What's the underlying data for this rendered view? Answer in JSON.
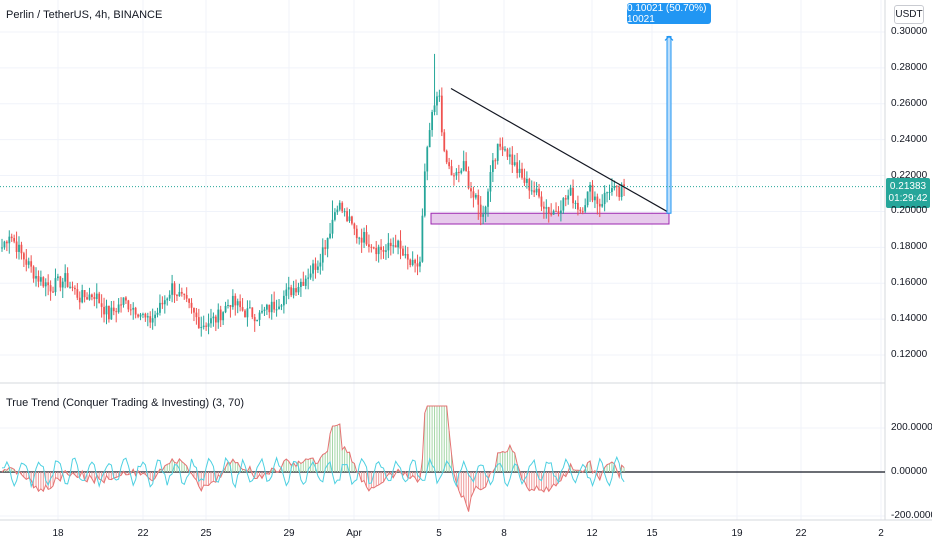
{
  "header": {
    "title": "Perlin / TetherUS, 4h, BINANCE",
    "currency_button": "USDT"
  },
  "indicator": {
    "title": "True Trend (Conquer Trading & Investing) (3, 70)",
    "y_ticks": [
      "200.00000",
      "0.00000",
      "-200.00000"
    ]
  },
  "price_axis": {
    "ticks": [
      "0.30000",
      "0.28000",
      "0.26000",
      "0.24000",
      "0.22000",
      "0.20000",
      "0.18000",
      "0.16000",
      "0.14000",
      "0.12000"
    ],
    "current_price": "0.21383",
    "countdown": "01:29:42"
  },
  "time_axis": {
    "ticks": [
      "18",
      "22",
      "25",
      "29",
      "Apr",
      "5",
      "8",
      "12",
      "15",
      "19",
      "22",
      "2"
    ]
  },
  "drawings": {
    "measure_label": "0.10021 (50.70%) 10021"
  },
  "colors": {
    "up": "#26a69a",
    "down": "#ef5350",
    "measure": "#2196f3",
    "zone_fill": "#e1bee7",
    "zone_border": "#9c27b0",
    "osc_fast": "#4dd0e1",
    "osc_slow": "#e57373",
    "hist_pos": "#a5d6a7",
    "hist_neg": "#ef9a9a"
  },
  "chart_data": {
    "type": "candlestick",
    "symbol": "PERLUSDT",
    "timeframe": "4h",
    "ylim": [
      0.11,
      0.305
    ],
    "trend_line": {
      "from": [
        0.2685,
        "Apr 5"
      ],
      "to": [
        0.2,
        "Apr 15"
      ]
    },
    "support_zone": [
      0.193,
      0.199
    ],
    "price_anchors": [
      [
        0,
        0.18
      ],
      [
        3,
        0.188
      ],
      [
        8,
        0.176
      ],
      [
        14,
        0.164
      ],
      [
        20,
        0.158
      ],
      [
        26,
        0.162
      ],
      [
        32,
        0.152
      ],
      [
        38,
        0.154
      ],
      [
        44,
        0.142
      ],
      [
        50,
        0.15
      ],
      [
        56,
        0.145
      ],
      [
        60,
        0.138
      ],
      [
        64,
        0.144
      ],
      [
        70,
        0.158
      ],
      [
        76,
        0.148
      ],
      [
        82,
        0.137
      ],
      [
        88,
        0.14
      ],
      [
        94,
        0.15
      ],
      [
        100,
        0.144
      ],
      [
        106,
        0.142
      ],
      [
        112,
        0.148
      ],
      [
        118,
        0.155
      ],
      [
        124,
        0.162
      ],
      [
        130,
        0.172
      ],
      [
        134,
        0.186
      ],
      [
        138,
        0.205
      ],
      [
        142,
        0.196
      ],
      [
        146,
        0.187
      ],
      [
        150,
        0.185
      ],
      [
        154,
        0.18
      ],
      [
        158,
        0.178
      ],
      [
        162,
        0.183
      ],
      [
        166,
        0.173
      ],
      [
        170,
        0.168
      ],
      [
        172,
        0.172
      ],
      [
        174,
        0.22
      ],
      [
        176,
        0.245
      ],
      [
        178,
        0.258
      ],
      [
        180,
        0.265
      ],
      [
        182,
        0.23
      ],
      [
        186,
        0.218
      ],
      [
        190,
        0.225
      ],
      [
        194,
        0.208
      ],
      [
        198,
        0.197
      ],
      [
        202,
        0.23
      ],
      [
        206,
        0.238
      ],
      [
        210,
        0.228
      ],
      [
        214,
        0.218
      ],
      [
        218,
        0.213
      ],
      [
        222,
        0.206
      ],
      [
        226,
        0.199
      ],
      [
        230,
        0.204
      ],
      [
        234,
        0.21
      ],
      [
        238,
        0.201
      ],
      [
        242,
        0.212
      ],
      [
        246,
        0.204
      ],
      [
        250,
        0.213
      ],
      [
        254,
        0.209
      ],
      [
        256,
        0.214
      ]
    ],
    "oscillator_ylim": [
      -200,
      300
    ]
  }
}
